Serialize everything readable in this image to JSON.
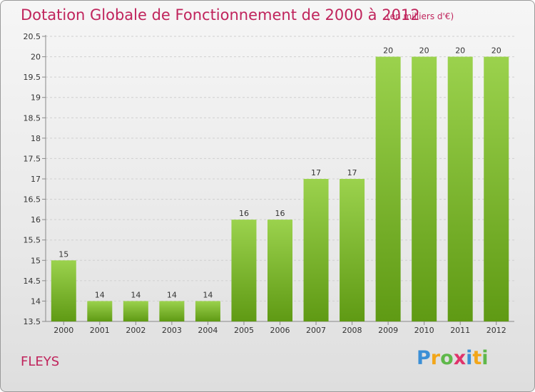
{
  "header": {
    "title": "Dotation Globale de Fonctionnement de 2000 à 2012",
    "subtitle": "(en milliers d'€)"
  },
  "footer": {
    "place": "FLEYS",
    "logo_text": "Proxiti"
  },
  "colors": {
    "accent": "#c0245c",
    "bar_light": "#9bd24d",
    "bar_dark": "#5f9a14"
  },
  "chart_data": {
    "type": "bar",
    "categories": [
      "2000",
      "2001",
      "2002",
      "2003",
      "2004",
      "2005",
      "2006",
      "2007",
      "2008",
      "2009",
      "2010",
      "2011",
      "2012"
    ],
    "values": [
      15,
      14,
      14,
      14,
      14,
      16,
      16,
      17,
      17,
      20,
      20,
      20,
      20
    ],
    "data_labels": [
      "15",
      "14",
      "14",
      "14",
      "14",
      "16",
      "16",
      "17",
      "17",
      "20",
      "20",
      "20",
      "20"
    ],
    "title": "Dotation Globale de Fonctionnement de 2000 à 2012",
    "subtitle": "(en milliers d'€)",
    "xlabel": "",
    "ylabel": "",
    "ylim": [
      13.5,
      20.5
    ],
    "yticks": [
      13.5,
      14,
      14.5,
      15,
      15.5,
      16,
      16.5,
      17,
      17.5,
      18,
      18.5,
      19,
      19.5,
      20,
      20.5
    ],
    "ytick_labels": [
      "13.5",
      "14",
      "14.5",
      "15",
      "15.5",
      "16",
      "16.5",
      "17",
      "17.5",
      "18",
      "18.5",
      "19",
      "19.5",
      "20",
      "20.5"
    ],
    "grid": true,
    "legend": "none"
  }
}
